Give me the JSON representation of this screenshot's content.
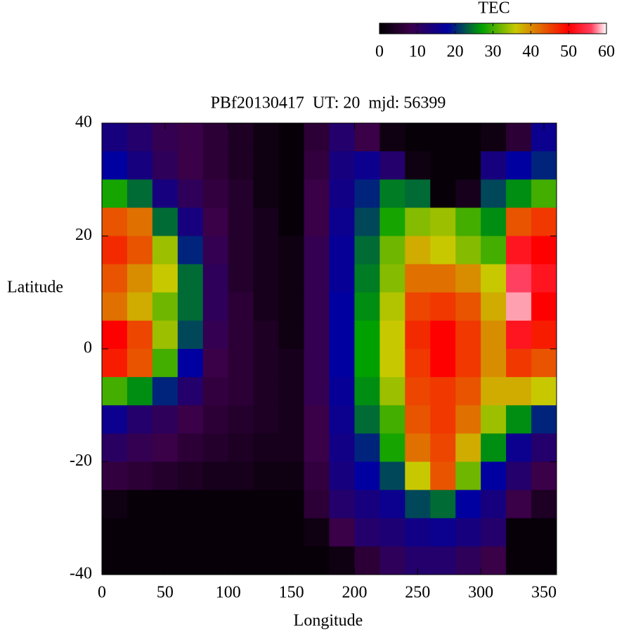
{
  "chart_data": {
    "type": "heatmap",
    "title": "PBf20130417  UT: 20  mjd: 56399",
    "x_label": "Longitude",
    "y_label": "Latitude",
    "colorbar_label": "TEC",
    "x": [
      10,
      30,
      50,
      70,
      90,
      110,
      130,
      150,
      170,
      190,
      210,
      230,
      250,
      270,
      290,
      310,
      330,
      350
    ],
    "y": [
      37.5,
      32.5,
      27.5,
      22.5,
      17.5,
      12.5,
      7.5,
      2.5,
      -2.5,
      -7.5,
      -12.5,
      -17.5,
      -22.5,
      -27.5,
      -32.5,
      -37.5
    ],
    "z": [
      [
        14,
        12,
        9,
        8,
        6,
        4,
        2,
        1,
        6,
        12,
        8,
        2,
        1,
        1,
        1,
        2,
        6,
        16
      ],
      [
        18,
        14,
        10,
        8,
        6,
        4,
        2,
        1,
        7,
        14,
        16,
        12,
        2,
        1,
        1,
        14,
        18,
        20
      ],
      [
        28,
        24,
        14,
        10,
        7,
        5,
        2,
        1,
        8,
        15,
        20,
        25,
        24,
        1,
        3,
        22,
        26,
        30
      ],
      [
        44,
        42,
        24,
        14,
        8,
        5,
        3,
        1,
        8,
        16,
        22,
        28,
        33,
        34,
        30,
        26,
        44,
        46
      ],
      [
        47,
        44,
        34,
        20,
        9,
        5,
        3,
        2,
        9,
        17,
        24,
        32,
        38,
        36,
        33,
        30,
        52,
        50
      ],
      [
        44,
        40,
        36,
        24,
        10,
        5,
        3,
        2,
        9,
        17,
        25,
        33,
        42,
        42,
        40,
        36,
        56,
        52
      ],
      [
        42,
        38,
        32,
        24,
        10,
        6,
        3,
        2,
        9,
        18,
        26,
        35,
        45,
        46,
        44,
        38,
        58,
        50
      ],
      [
        50,
        45,
        34,
        22,
        9,
        6,
        4,
        2,
        9,
        18,
        27,
        36,
        47,
        50,
        46,
        40,
        52,
        48
      ],
      [
        48,
        44,
        30,
        18,
        8,
        6,
        4,
        3,
        9,
        18,
        27,
        36,
        46,
        50,
        46,
        40,
        46,
        44
      ],
      [
        30,
        26,
        20,
        12,
        7,
        6,
        4,
        3,
        9,
        17,
        26,
        34,
        45,
        46,
        44,
        38,
        38,
        36
      ],
      [
        16,
        12,
        10,
        8,
        6,
        5,
        4,
        3,
        8,
        16,
        24,
        30,
        44,
        46,
        42,
        34,
        26,
        20
      ],
      [
        11,
        9,
        8,
        6,
        5,
        4,
        3,
        3,
        8,
        15,
        20,
        28,
        42,
        45,
        38,
        26,
        16,
        12
      ],
      [
        7,
        6,
        5,
        4,
        3,
        3,
        2,
        2,
        7,
        14,
        18,
        22,
        36,
        44,
        32,
        18,
        12,
        8
      ],
      [
        2,
        1,
        1,
        1,
        1,
        1,
        1,
        1,
        6,
        12,
        14,
        16,
        22,
        24,
        18,
        14,
        8,
        4
      ],
      [
        1,
        1,
        1,
        1,
        1,
        1,
        1,
        1,
        2,
        8,
        12,
        13,
        15,
        16,
        14,
        12,
        1,
        1
      ],
      [
        1,
        1,
        1,
        1,
        1,
        1,
        1,
        1,
        1,
        2,
        6,
        10,
        12,
        12,
        10,
        8,
        1,
        1
      ]
    ],
    "xlim": [
      0,
      360
    ],
    "ylim": [
      -40,
      40
    ],
    "xticks": [
      0,
      50,
      100,
      150,
      200,
      250,
      300,
      350
    ],
    "yticks": [
      -40,
      -20,
      0,
      20,
      40
    ],
    "clim": [
      0,
      60
    ],
    "cticks": [
      0,
      10,
      20,
      30,
      40,
      50,
      60
    ],
    "colorscale": [
      {
        "value": 0,
        "color": "#000000"
      },
      {
        "value": 8,
        "color": "#3a0048"
      },
      {
        "value": 18,
        "color": "#0000a0"
      },
      {
        "value": 27,
        "color": "#00a000"
      },
      {
        "value": 36,
        "color": "#c8c800"
      },
      {
        "value": 42,
        "color": "#e07000"
      },
      {
        "value": 50,
        "color": "#ff0000"
      },
      {
        "value": 56,
        "color": "#ff4060"
      },
      {
        "value": 60,
        "color": "#ffffff"
      }
    ]
  }
}
